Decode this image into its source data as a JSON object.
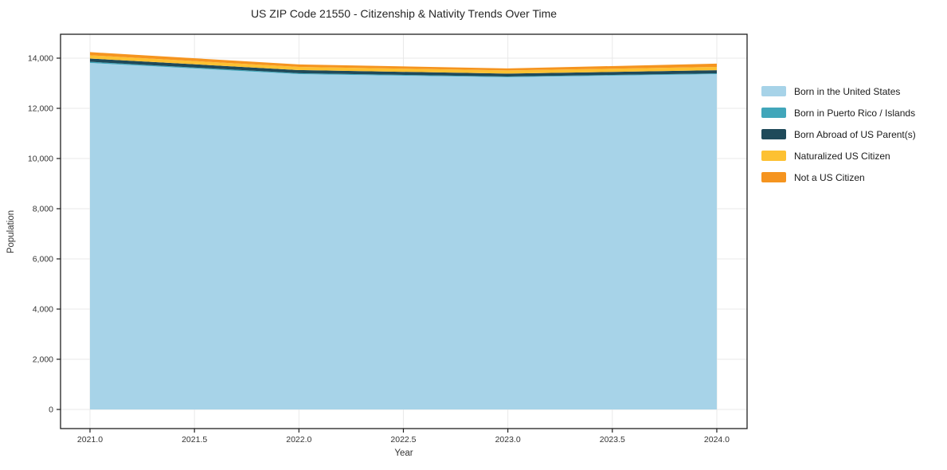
{
  "chart_data": {
    "type": "area",
    "stacked": true,
    "title": "US ZIP Code 21550 - Citizenship & Nativity Trends Over Time",
    "xlabel": "Year",
    "ylabel": "Population",
    "x": [
      2021,
      2022,
      2023,
      2024
    ],
    "series": [
      {
        "name": "Born in the United States",
        "color": "#a7d3e8",
        "values": [
          13810,
          13365,
          13240,
          13365
        ]
      },
      {
        "name": "Born in Puerto Rico / Islands",
        "color": "#41a6ba",
        "values": [
          45,
          35,
          30,
          30
        ]
      },
      {
        "name": "Born Abroad of US Parent(s)",
        "color": "#1f4a5a",
        "values": [
          130,
          125,
          115,
          125
        ]
      },
      {
        "name": "Naturalized US Citizen",
        "color": "#fdc132",
        "values": [
          130,
          125,
          125,
          130
        ]
      },
      {
        "name": "Not a US Citizen",
        "color": "#f5941f",
        "values": [
          125,
          100,
          80,
          130
        ]
      }
    ],
    "xlim": [
      2020.859,
      2024.145
    ],
    "ylim": [
      -762,
      14952
    ],
    "xticks": {
      "values": [
        2021.0,
        2021.5,
        2022.0,
        2022.5,
        2023.0,
        2023.5,
        2024.0
      ],
      "labels": [
        "2021.0",
        "2021.5",
        "2022.0",
        "2022.5",
        "2023.0",
        "2023.5",
        "2024.0"
      ]
    },
    "yticks": {
      "values": [
        0,
        2000,
        4000,
        6000,
        8000,
        10000,
        12000,
        14000
      ],
      "labels": [
        "0",
        "2,000",
        "4,000",
        "6,000",
        "8,000",
        "10,000",
        "12,000",
        "14,000"
      ]
    },
    "grid": true,
    "legend_position": "outside-right",
    "colors": {
      "grid": "#e9e9e9",
      "spine": "#1f1f1f",
      "tick_label": "#333333",
      "background": "#ffffff"
    }
  }
}
